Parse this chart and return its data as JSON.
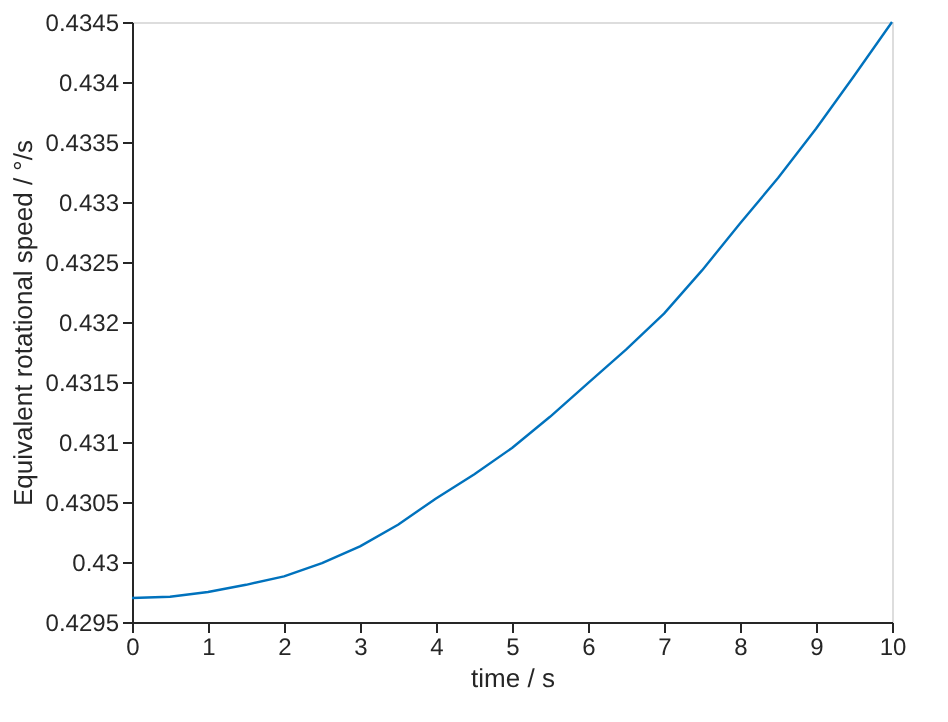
{
  "chart_data": {
    "type": "line",
    "xlabel": "time / s",
    "ylabel": "Equivalent rotational speed / °/s",
    "x": [
      0,
      0.5,
      1,
      1.5,
      2,
      2.5,
      3,
      3.5,
      4,
      4.5,
      5,
      5.5,
      6,
      6.5,
      7,
      7.5,
      8,
      8.5,
      9,
      9.5,
      10
    ],
    "series": [
      {
        "color": "#0072bd",
        "values": [
          0.4297,
          0.42971,
          0.42975,
          0.42981,
          0.42988,
          0.42999,
          0.43013,
          0.43031,
          0.43053,
          0.43073,
          0.43095,
          0.43121,
          0.43149,
          0.43177,
          0.43207,
          0.43243,
          0.43282,
          0.4332,
          0.43361,
          0.43405,
          0.4345
        ]
      }
    ],
    "xlim": [
      0,
      10
    ],
    "xticks": [
      0,
      1,
      2,
      3,
      4,
      5,
      6,
      7,
      8,
      9,
      10
    ],
    "ylim": [
      0.4295,
      0.4345
    ],
    "yticks": [
      0.4295,
      0.43,
      0.4305,
      0.431,
      0.4315,
      0.432,
      0.4325,
      0.433,
      0.4335,
      0.434,
      0.4345
    ],
    "grid": false,
    "legend": false
  }
}
